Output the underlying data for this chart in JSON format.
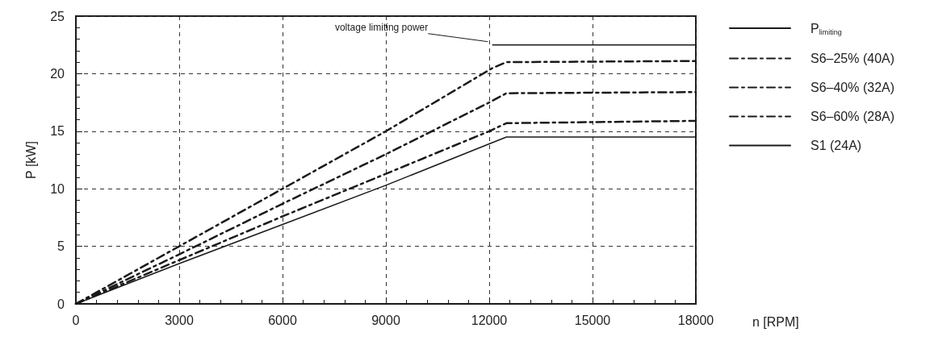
{
  "chart_data": {
    "type": "line",
    "xlabel": "n [RPM]",
    "ylabel": "P [kW]",
    "xlim": [
      0,
      18000
    ],
    "xticks": [
      0,
      3000,
      6000,
      9000,
      12000,
      15000,
      18000
    ],
    "ylim": [
      0,
      25
    ],
    "yticks": [
      0,
      5,
      10,
      15,
      20,
      25
    ],
    "grid": true,
    "legend": "right",
    "marker": "none",
    "series": [
      {
        "name": "P$_{limiting}$",
        "color": "#1a1a1a",
        "line_style": "solid",
        "x": [
          12100,
          18000
        ],
        "values": [
          22.5,
          22.5
        ]
      },
      {
        "name": "S6–25% (40A)",
        "color": "#1a1a1a",
        "line_style": "dashed",
        "x": [
          0,
          3000,
          6000,
          9000,
          12100,
          12500,
          18000
        ],
        "values": [
          0,
          5,
          10,
          15,
          20.5,
          21,
          21.1
        ]
      },
      {
        "name": "S6–40% (32A)",
        "color": "#1a1a1a",
        "line_style": "dashed",
        "x": [
          0,
          3000,
          6000,
          9000,
          12000,
          12500,
          18000
        ],
        "values": [
          0,
          4.3,
          8.7,
          13,
          17.5,
          18.3,
          18.4
        ]
      },
      {
        "name": "S6–60% (28A)",
        "color": "#1a1a1a",
        "line_style": "dashed",
        "x": [
          0,
          3000,
          6000,
          9000,
          12000,
          12500,
          18000
        ],
        "values": [
          0,
          3.8,
          7.6,
          11.3,
          15,
          15.7,
          15.9
        ]
      },
      {
        "name": "S1 (24A)",
        "color": "#1a1a1a",
        "line_style": "solid",
        "x": [
          0,
          3000,
          6000,
          9000,
          12000,
          12500,
          18000
        ],
        "values": [
          0,
          3.5,
          6.9,
          10.3,
          13.9,
          14.5,
          14.5
        ]
      }
    ],
    "annotations": [
      {
        "text": "voltage limiting power",
        "x": 12100,
        "y": 22.5
      }
    ]
  }
}
